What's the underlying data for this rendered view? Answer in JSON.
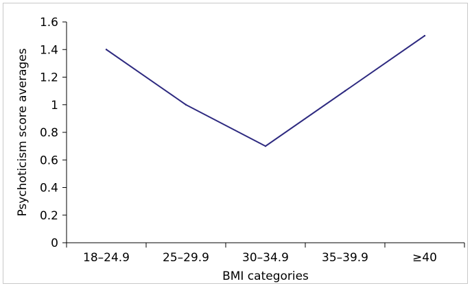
{
  "chart_data": {
    "type": "line",
    "categories": [
      "18–24.9",
      "25–29.9",
      "30–34.9",
      "35–39.9",
      "≥40"
    ],
    "series": [
      {
        "values": [
          1.4,
          1.0,
          0.7,
          1.1,
          1.5
        ]
      }
    ],
    "title": "",
    "xlabel": "BMI categories",
    "ylabel": "Psychoticism score averages",
    "ylim": [
      0,
      1.6
    ],
    "yticks": [
      "0",
      "0.2",
      "0.4",
      "0.6",
      "0.8",
      "1",
      "1.2",
      "1.4",
      "1.6"
    ],
    "grid": false,
    "legend": "none",
    "colors": {
      "line": "#2e2a80",
      "axis": "#000000"
    }
  }
}
